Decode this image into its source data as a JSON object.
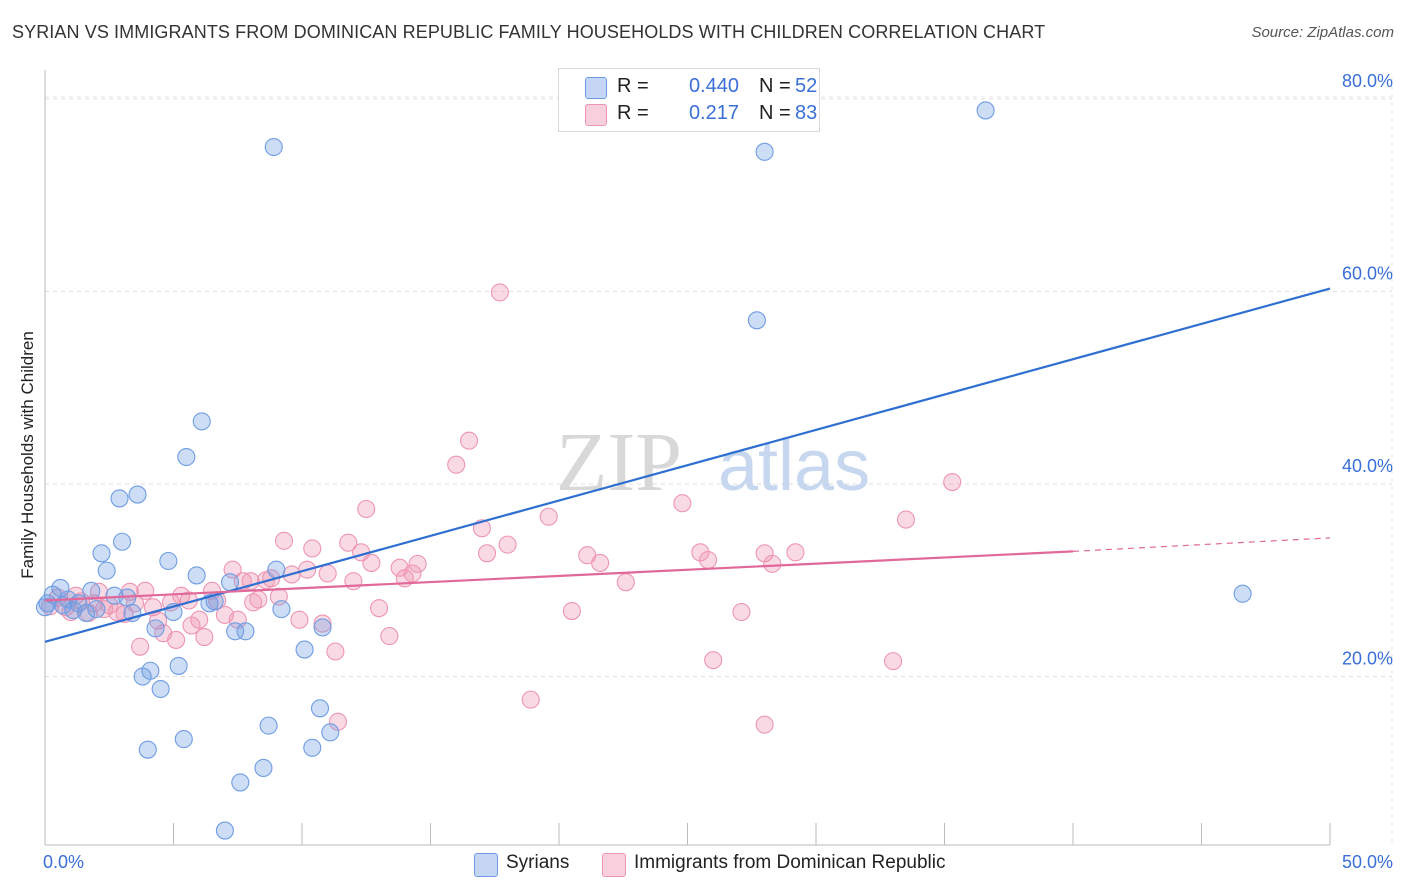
{
  "header": {
    "title": "SYRIAN VS IMMIGRANTS FROM DOMINICAN REPUBLIC FAMILY HOUSEHOLDS WITH CHILDREN CORRELATION CHART",
    "source": "Source: ZipAtlas.com"
  },
  "watermark": {
    "part1": "ZIP",
    "part2": "atlas"
  },
  "legend": {
    "r_label": "R =",
    "n_label": "N =",
    "series1": {
      "r": "0.440",
      "n": "52"
    },
    "series2": {
      "r": "0.217",
      "n": "83"
    }
  },
  "bottom_legend": {
    "series1": "Syrians",
    "series2": "Immigrants from Dominican Republic"
  },
  "x_axis": {
    "min_label": "0.0%",
    "max_label": "50.0%"
  },
  "chart_data": {
    "type": "scatter",
    "title": "SYRIAN VS IMMIGRANTS FROM DOMINICAN REPUBLIC FAMILY HOUSEHOLDS WITH CHILDREN CORRELATION CHART",
    "xlabel": "",
    "ylabel": "Family Households with Children",
    "xlim": [
      0,
      50
    ],
    "ylim": [
      2.5,
      83
    ],
    "y_ticks": [
      {
        "value": 20,
        "label": "20.0%"
      },
      {
        "value": 40,
        "label": "40.0%"
      },
      {
        "value": 60,
        "label": "60.0%"
      },
      {
        "value": 80,
        "label": "80.0%"
      }
    ],
    "grid": true,
    "colors": {
      "series1": "#6f9de3",
      "series2": "#ee95b3",
      "line1": "#2f6fd1",
      "line2": "#e0699a",
      "accent": "#3a6fd8"
    },
    "series": [
      {
        "name": "Syrians",
        "trend": {
          "x0": 0,
          "y0": 23.6,
          "x1": 50,
          "y1": 60.3
        },
        "points": [
          [
            0.1,
            27.6
          ],
          [
            0.3,
            28.5
          ],
          [
            0.6,
            29.2
          ],
          [
            0.7,
            27.4
          ],
          [
            0.9,
            28.0
          ],
          [
            1.1,
            26.9
          ],
          [
            1.3,
            27.6
          ],
          [
            1.6,
            26.6
          ],
          [
            1.8,
            28.9
          ],
          [
            2.0,
            27.0
          ],
          [
            2.2,
            32.8
          ],
          [
            2.4,
            31.0
          ],
          [
            2.7,
            28.4
          ],
          [
            2.9,
            38.5
          ],
          [
            3.0,
            34.0
          ],
          [
            3.2,
            28.2
          ],
          [
            3.4,
            26.6
          ],
          [
            3.6,
            38.9
          ],
          [
            3.8,
            20.0
          ],
          [
            4.0,
            12.4
          ],
          [
            4.1,
            20.6
          ],
          [
            4.3,
            25.0
          ],
          [
            4.5,
            18.7
          ],
          [
            4.8,
            32.0
          ],
          [
            5.0,
            26.7
          ],
          [
            5.2,
            21.1
          ],
          [
            5.4,
            13.5
          ],
          [
            5.5,
            42.8
          ],
          [
            5.9,
            30.5
          ],
          [
            6.1,
            46.5
          ],
          [
            6.4,
            27.6
          ],
          [
            6.6,
            27.8
          ],
          [
            7.0,
            4.0
          ],
          [
            7.2,
            29.8
          ],
          [
            7.4,
            24.7
          ],
          [
            7.6,
            9.0
          ],
          [
            7.8,
            24.7
          ],
          [
            8.5,
            10.5
          ],
          [
            8.7,
            14.9
          ],
          [
            8.9,
            75.0
          ],
          [
            9.0,
            31.1
          ],
          [
            9.2,
            27.0
          ],
          [
            10.1,
            22.8
          ],
          [
            10.4,
            12.6
          ],
          [
            10.7,
            16.7
          ],
          [
            10.8,
            25.1
          ],
          [
            11.1,
            14.2
          ],
          [
            27.7,
            57.0
          ],
          [
            28.0,
            74.5
          ],
          [
            36.6,
            78.8
          ],
          [
            46.6,
            28.6
          ],
          [
            0.0,
            27.2
          ]
        ]
      },
      {
        "name": "Immigrants from Dominican Republic",
        "trend": {
          "x0": 0,
          "y0": 27.9,
          "x1": 40,
          "y1": 33.0,
          "x2": 50,
          "y2": 34.4
        },
        "points": [
          [
            0.2,
            27.3
          ],
          [
            0.5,
            28.2
          ],
          [
            0.8,
            27.2
          ],
          [
            1.0,
            26.7
          ],
          [
            1.2,
            28.4
          ],
          [
            1.4,
            27.8
          ],
          [
            1.7,
            26.6
          ],
          [
            1.9,
            27.6
          ],
          [
            2.1,
            28.8
          ],
          [
            2.3,
            27.0
          ],
          [
            2.5,
            27.4
          ],
          [
            2.8,
            26.7
          ],
          [
            3.1,
            26.5
          ],
          [
            3.3,
            28.8
          ],
          [
            3.5,
            27.6
          ],
          [
            3.7,
            23.1
          ],
          [
            3.9,
            28.9
          ],
          [
            4.2,
            27.2
          ],
          [
            4.4,
            25.8
          ],
          [
            4.6,
            24.5
          ],
          [
            4.9,
            27.7
          ],
          [
            5.1,
            23.8
          ],
          [
            5.3,
            28.4
          ],
          [
            5.6,
            27.9
          ],
          [
            5.7,
            25.3
          ],
          [
            6.0,
            25.9
          ],
          [
            6.2,
            24.1
          ],
          [
            6.5,
            28.9
          ],
          [
            6.7,
            27.9
          ],
          [
            7.0,
            26.4
          ],
          [
            7.3,
            31.1
          ],
          [
            7.5,
            25.9
          ],
          [
            7.7,
            29.9
          ],
          [
            8.0,
            29.9
          ],
          [
            8.1,
            27.7
          ],
          [
            8.3,
            28.0
          ],
          [
            8.6,
            30.0
          ],
          [
            8.8,
            30.2
          ],
          [
            9.1,
            28.3
          ],
          [
            9.3,
            34.1
          ],
          [
            9.6,
            30.6
          ],
          [
            9.9,
            25.9
          ],
          [
            10.2,
            31.1
          ],
          [
            10.4,
            33.3
          ],
          [
            10.8,
            25.5
          ],
          [
            11.0,
            30.7
          ],
          [
            11.3,
            22.6
          ],
          [
            11.4,
            15.3
          ],
          [
            11.8,
            33.9
          ],
          [
            12.0,
            29.9
          ],
          [
            12.3,
            32.9
          ],
          [
            12.5,
            37.4
          ],
          [
            12.7,
            31.8
          ],
          [
            13.0,
            27.1
          ],
          [
            13.4,
            24.2
          ],
          [
            13.8,
            31.3
          ],
          [
            14.0,
            30.2
          ],
          [
            14.3,
            30.7
          ],
          [
            14.5,
            31.7
          ],
          [
            16.0,
            42.0
          ],
          [
            16.5,
            44.5
          ],
          [
            17.2,
            32.8
          ],
          [
            17.7,
            59.9
          ],
          [
            17.0,
            35.4
          ],
          [
            18.0,
            33.7
          ],
          [
            18.9,
            17.6
          ],
          [
            19.6,
            36.6
          ],
          [
            20.5,
            26.8
          ],
          [
            21.1,
            32.6
          ],
          [
            21.6,
            31.8
          ],
          [
            22.6,
            29.8
          ],
          [
            24.8,
            38.0
          ],
          [
            25.5,
            32.9
          ],
          [
            25.8,
            32.1
          ],
          [
            26.0,
            21.7
          ],
          [
            27.1,
            26.7
          ],
          [
            28.0,
            32.8
          ],
          [
            28.3,
            31.7
          ],
          [
            28.0,
            15.0
          ],
          [
            29.2,
            32.9
          ],
          [
            33.0,
            21.6
          ],
          [
            33.5,
            36.3
          ],
          [
            35.3,
            40.2
          ]
        ]
      }
    ]
  }
}
